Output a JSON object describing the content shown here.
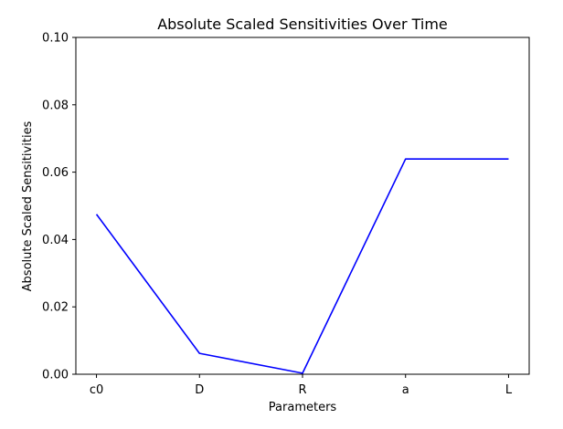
{
  "chart_data": {
    "type": "line",
    "title": "Absolute Scaled Sensitivities Over Time",
    "xlabel": "Parameters",
    "ylabel": "Absolute Scaled Sensitivities",
    "categories": [
      "c0",
      "D",
      "R",
      "a",
      "L"
    ],
    "values": [
      0.0475,
      0.0062,
      0.0003,
      0.0639,
      0.0639
    ],
    "ylim": [
      0.0,
      0.1
    ],
    "yticks": [
      0.0,
      0.02,
      0.04,
      0.06,
      0.08,
      0.1
    ],
    "ytick_labels": [
      "0.00",
      "0.02",
      "0.04",
      "0.06",
      "0.08",
      "0.10"
    ],
    "line_color": "#0000ff",
    "grid": false,
    "legend": "none"
  }
}
